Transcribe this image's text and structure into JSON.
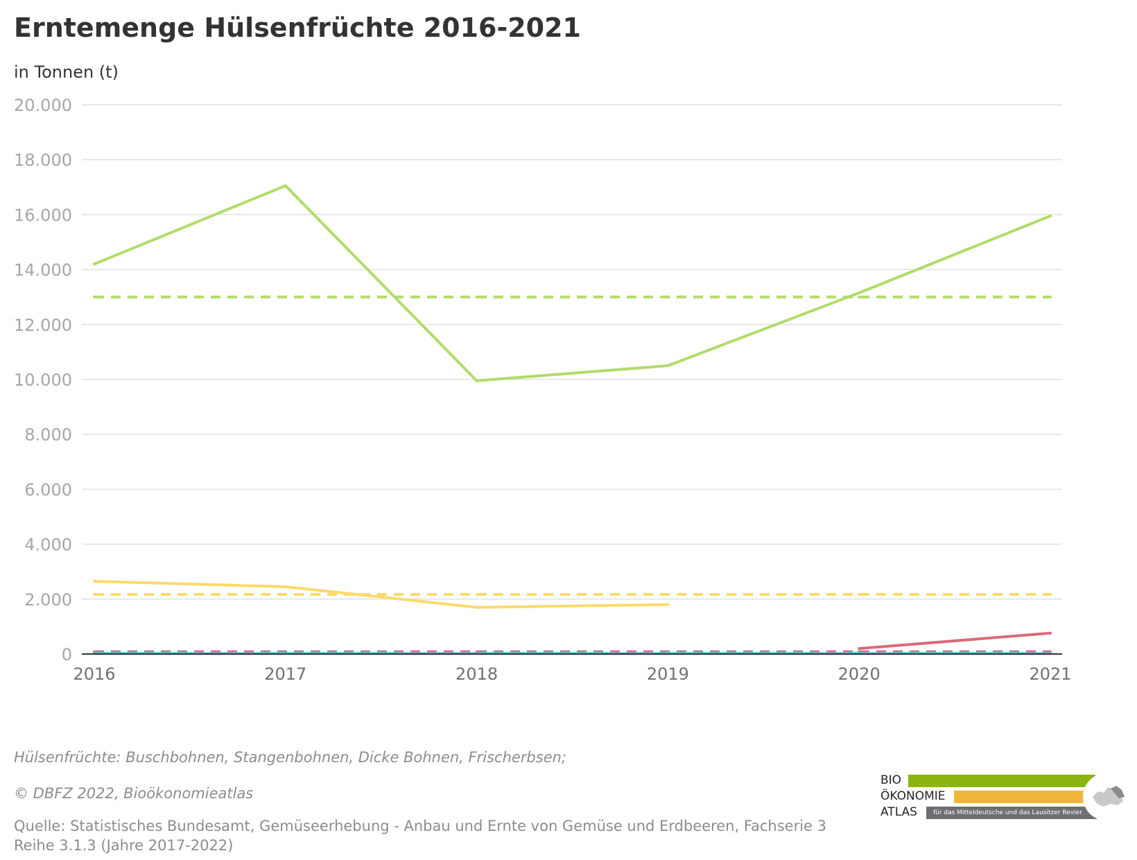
{
  "header": {
    "title": "Erntemenge Hülsenfrüchte 2016-2021",
    "subtitle": "in Tonnen (t)"
  },
  "chart_data": {
    "type": "line",
    "title": "Erntemenge Hülsenfrüchte 2016-2021",
    "ylabel": "in Tonnen (t)",
    "xlabel": "",
    "x": [
      2016,
      2017,
      2018,
      2019,
      2020,
      2021
    ],
    "ylim": [
      0,
      20000
    ],
    "yticks": [
      0,
      2000,
      4000,
      6000,
      8000,
      10000,
      12000,
      14000,
      16000,
      18000,
      20000
    ],
    "ytick_labels": [
      "0",
      "2.000",
      "4.000",
      "6.000",
      "8.000",
      "10.000",
      "12.000",
      "14.000",
      "16.000",
      "18.000",
      "20.000"
    ],
    "xtick_labels": [
      "2016",
      "2017",
      "2018",
      "2019",
      "2020",
      "2021"
    ],
    "grid": true,
    "legend": "none",
    "series": [
      {
        "color": "#b2db6a",
        "style": "solid",
        "values": [
          14200,
          17050,
          9950,
          10500,
          13150,
          15950
        ]
      },
      {
        "color": "#b2db6a",
        "style": "dashed",
        "values": [
          13000,
          13000,
          13000,
          13000,
          13000,
          13000
        ]
      },
      {
        "color": "#fcd96b",
        "style": "solid",
        "values": [
          2650,
          2450,
          1700,
          1800,
          null,
          null
        ]
      },
      {
        "color": "#fcd96b",
        "style": "dashed",
        "values": [
          2170,
          2170,
          2170,
          2170,
          2170,
          2170
        ]
      },
      {
        "color": "#d96b79",
        "style": "solid",
        "values": [
          null,
          null,
          null,
          null,
          200,
          760
        ]
      },
      {
        "color": "#d96b79",
        "style": "dashed",
        "values": [
          80,
          80,
          80,
          80,
          80,
          80
        ]
      },
      {
        "color": "#5bbde4",
        "style": "solid",
        "values": [
          20,
          20,
          20,
          20,
          20,
          20
        ]
      }
    ]
  },
  "footer": {
    "note": "Hülsenfrüchte: Buschbohnen, Stangenbohnen, Dicke Bohnen, Frischerbsen;",
    "copyright": "© DBFZ 2022, Bioökonomieatlas",
    "source_line1": "Quelle: Statistisches Bundesamt, Gemüseerhebung - Anbau und Ernte von Gemüse und Erdbeeren, Fachserie 3",
    "source_line2": "Reihe 3.1.3 (Jahre 2017-2022)"
  },
  "logo": {
    "line1": "BIO",
    "line2": "ÖKONOMIE",
    "line3": "ATLAS",
    "tagline": "für das Mitteldeutsche und das Lausitzer Revier",
    "green": "#8cb510",
    "yellow": "#f0b63c",
    "gray": "#6d6f72"
  }
}
